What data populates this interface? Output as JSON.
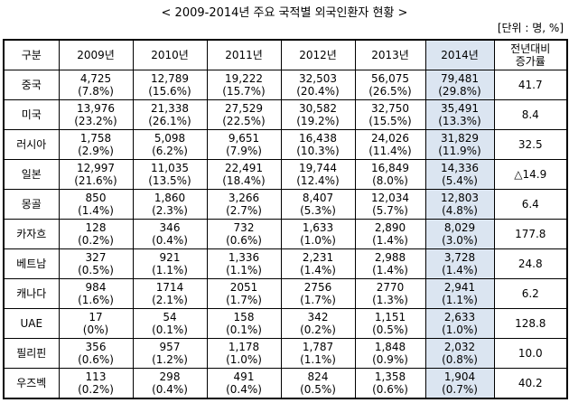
{
  "title": "< 2009-2014년 주요 국적별 외국인환자 현황 >",
  "unit": "[단위 : 명, %]",
  "table": {
    "header": [
      "구분",
      "2009년",
      "2010년",
      "2011년",
      "2012년",
      "2013년",
      "2014년",
      "전년대비\n증가률"
    ],
    "rows": [
      {
        "name": "중국",
        "cells": [
          [
            "4,725",
            "(7.8%)"
          ],
          [
            "12,789",
            "(15.6%)"
          ],
          [
            "19,222",
            "(15.7%)"
          ],
          [
            "32,503",
            "(20.4%)"
          ],
          [
            "56,075",
            "(26.5%)"
          ],
          [
            "79,481",
            "(29.8%)"
          ]
        ],
        "growth": "41.7"
      },
      {
        "name": "미국",
        "cells": [
          [
            "13,976",
            "(23.2%)"
          ],
          [
            "21,338",
            "(26.1%)"
          ],
          [
            "27,529",
            "(22.5%)"
          ],
          [
            "30,582",
            "(19.2%)"
          ],
          [
            "32,750",
            "(15.5%)"
          ],
          [
            "35,491",
            "(13.3%)"
          ]
        ],
        "growth": "8.4"
      },
      {
        "name": "러시아",
        "cells": [
          [
            "1,758",
            "(2.9%)"
          ],
          [
            "5,098",
            "(6.2%)"
          ],
          [
            "9,651",
            "(7.9%)"
          ],
          [
            "16,438",
            "(10.3%)"
          ],
          [
            "24,026",
            "(11.4%)"
          ],
          [
            "31,829",
            "(11.9%)"
          ]
        ],
        "growth": "32.5"
      },
      {
        "name": "일본",
        "cells": [
          [
            "12,997",
            "(21.6%)"
          ],
          [
            "11,035",
            "(13.5%)"
          ],
          [
            "22,491",
            "(18.4%)"
          ],
          [
            "19,744",
            "(12.4%)"
          ],
          [
            "16,849",
            "(8.0%)"
          ],
          [
            "14,336",
            "(5.4%)"
          ]
        ],
        "growth": "△14.9"
      },
      {
        "name": "몽골",
        "cells": [
          [
            "850",
            "(1.4%)"
          ],
          [
            "1,860",
            "(2.3%)"
          ],
          [
            "3,266",
            "(2.7%)"
          ],
          [
            "8,407",
            "(5.3%)"
          ],
          [
            "12,034",
            "(5.7%)"
          ],
          [
            "12,803",
            "(4.8%)"
          ]
        ],
        "growth": "6.4"
      },
      {
        "name": "카자흐",
        "cells": [
          [
            "128",
            "(0.2%)"
          ],
          [
            "346",
            "(0.4%)"
          ],
          [
            "732",
            "(0.6%)"
          ],
          [
            "1,633",
            "(1.0%)"
          ],
          [
            "2,890",
            "(1.4%)"
          ],
          [
            "8,029",
            "(3.0%)"
          ]
        ],
        "growth": "177.8"
      },
      {
        "name": "베트남",
        "cells": [
          [
            "327",
            "(0.5%)"
          ],
          [
            "921",
            "(1.1%)"
          ],
          [
            "1,336",
            "(1.1%)"
          ],
          [
            "2,231",
            "(1.4%)"
          ],
          [
            "2,988",
            "(1.4%)"
          ],
          [
            "3,728",
            "(1.4%)"
          ]
        ],
        "growth": "24.8"
      },
      {
        "name": "캐나다",
        "cells": [
          [
            "984",
            "(1.6%)"
          ],
          [
            "1714",
            "(2.1%)"
          ],
          [
            "2051",
            "(1.7%)"
          ],
          [
            "2756",
            "(1.7%)"
          ],
          [
            "2770",
            "(1.3%)"
          ],
          [
            "2,941",
            "(1.1%)"
          ]
        ],
        "growth": "6.2"
      },
      {
        "name": "UAE",
        "cells": [
          [
            "17",
            "(0%)"
          ],
          [
            "54",
            "(0.1%)"
          ],
          [
            "158",
            "(0.1%)"
          ],
          [
            "342",
            "(0.2%)"
          ],
          [
            "1,151",
            "(0.5%)"
          ],
          [
            "2,633",
            "(1.0%)"
          ]
        ],
        "growth": "128.8"
      },
      {
        "name": "필리핀",
        "cells": [
          [
            "356",
            "(0.6%)"
          ],
          [
            "957",
            "(1.2%)"
          ],
          [
            "1,178",
            "(1.0%)"
          ],
          [
            "1,787",
            "(1.1%)"
          ],
          [
            "1,848",
            "(0.9%)"
          ],
          [
            "2,032",
            "(0.8%)"
          ]
        ],
        "growth": "10.0"
      },
      {
        "name": "우즈벡",
        "cells": [
          [
            "113",
            "(0.2%)"
          ],
          [
            "298",
            "(0.4%)"
          ],
          [
            "491",
            "(0.4%)"
          ],
          [
            "824",
            "(0.5%)"
          ],
          [
            "1,358",
            "(0.6%)"
          ],
          [
            "1,904",
            "(0.7%)"
          ]
        ],
        "growth": "40.2"
      }
    ]
  }
}
